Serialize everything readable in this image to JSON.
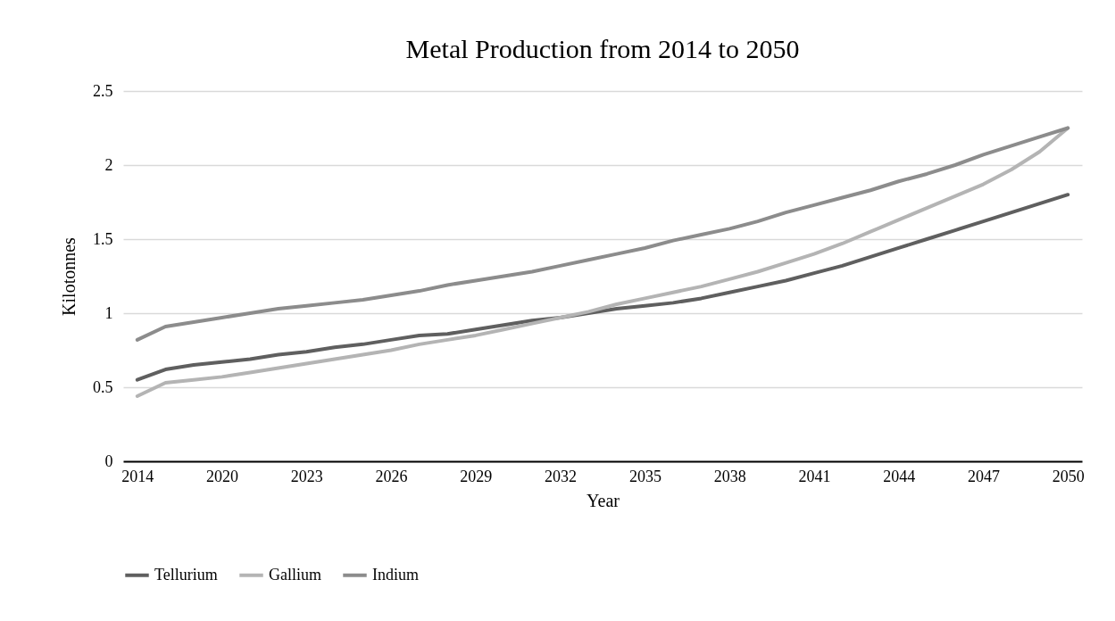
{
  "chart_data": {
    "type": "line",
    "title": "Metal Production from 2014 to 2050",
    "xlabel": "Year",
    "ylabel": "Kilotonnes",
    "categories": [
      "2014",
      null,
      null,
      "2020",
      null,
      null,
      "2023",
      null,
      null,
      "2026",
      null,
      null,
      "2029",
      null,
      null,
      "2032",
      null,
      null,
      "2035",
      null,
      null,
      "2038",
      null,
      null,
      "2041",
      null,
      null,
      "2044",
      null,
      null,
      "2047",
      null,
      null,
      "2050"
    ],
    "series": [
      {
        "name": "Tellurium",
        "color": "#5f5f5f",
        "values": [
          0.55,
          0.62,
          0.65,
          0.67,
          0.69,
          0.72,
          0.74,
          0.77,
          0.79,
          0.82,
          0.85,
          0.86,
          0.89,
          0.92,
          0.95,
          0.97,
          1.0,
          1.03,
          1.05,
          1.07,
          1.1,
          1.14,
          1.18,
          1.22,
          1.27,
          1.32,
          1.38,
          1.44,
          1.5,
          1.56,
          1.62,
          1.68,
          1.74,
          1.8
        ]
      },
      {
        "name": "Gallium",
        "color": "#b4b4b4",
        "values": [
          0.44,
          0.53,
          0.55,
          0.57,
          0.6,
          0.63,
          0.66,
          0.69,
          0.72,
          0.75,
          0.79,
          0.82,
          0.85,
          0.89,
          0.93,
          0.97,
          1.01,
          1.06,
          1.1,
          1.14,
          1.18,
          1.23,
          1.28,
          1.34,
          1.4,
          1.47,
          1.55,
          1.63,
          1.71,
          1.79,
          1.87,
          1.97,
          2.09,
          2.25
        ]
      },
      {
        "name": "Indium",
        "color": "#8c8c8c",
        "values": [
          0.82,
          0.91,
          0.94,
          0.97,
          1.0,
          1.03,
          1.05,
          1.07,
          1.09,
          1.12,
          1.15,
          1.19,
          1.22,
          1.25,
          1.28,
          1.32,
          1.36,
          1.4,
          1.44,
          1.49,
          1.53,
          1.57,
          1.62,
          1.68,
          1.73,
          1.78,
          1.83,
          1.89,
          1.94,
          2.0,
          2.07,
          2.13,
          2.19,
          2.25
        ]
      }
    ],
    "ylim": [
      0,
      2.5
    ],
    "yticks": [
      0,
      0.5,
      1,
      1.5,
      2,
      2.5
    ],
    "grid": "y",
    "legend": "bottom",
    "line_style": "solid"
  }
}
